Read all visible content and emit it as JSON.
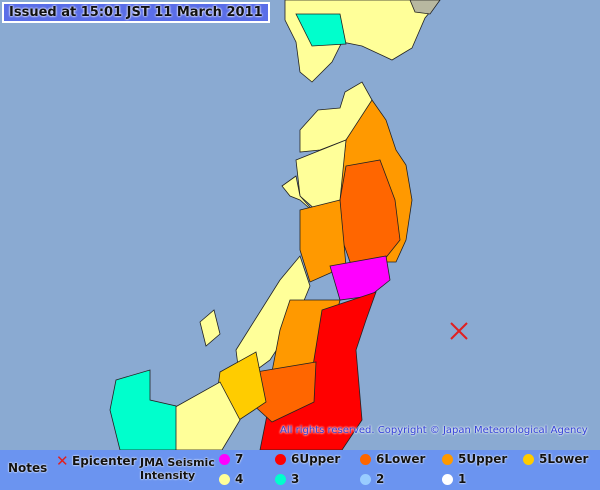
{
  "header": {
    "issued": "Issued at 15:01 JST  11 March 2011"
  },
  "copyright": "All rights reserved. Copyright © Japan Meteorological Agency",
  "colors": {
    "sea": "#8aaad2",
    "legend_bg": "#6b94f0",
    "epicenter": "#e02020"
  },
  "legend": {
    "notes": "Notes",
    "epicenter": "Epicenter",
    "scale_title_1": "JMA Seismic",
    "scale_title_2": "Intensity",
    "items": [
      {
        "label": "7",
        "color": "#ff00ff"
      },
      {
        "label": "6Upper",
        "color": "#ff0000"
      },
      {
        "label": "6Lower",
        "color": "#ff6600"
      },
      {
        "label": "5Upper",
        "color": "#ff9900"
      },
      {
        "label": "5Lower",
        "color": "#ffcc00"
      },
      {
        "label": "4",
        "color": "#ffff99"
      },
      {
        "label": "3",
        "color": "#00ffcc"
      },
      {
        "label": "2",
        "color": "#99ccff"
      },
      {
        "label": "1",
        "color": "#ffffff"
      }
    ]
  }
}
